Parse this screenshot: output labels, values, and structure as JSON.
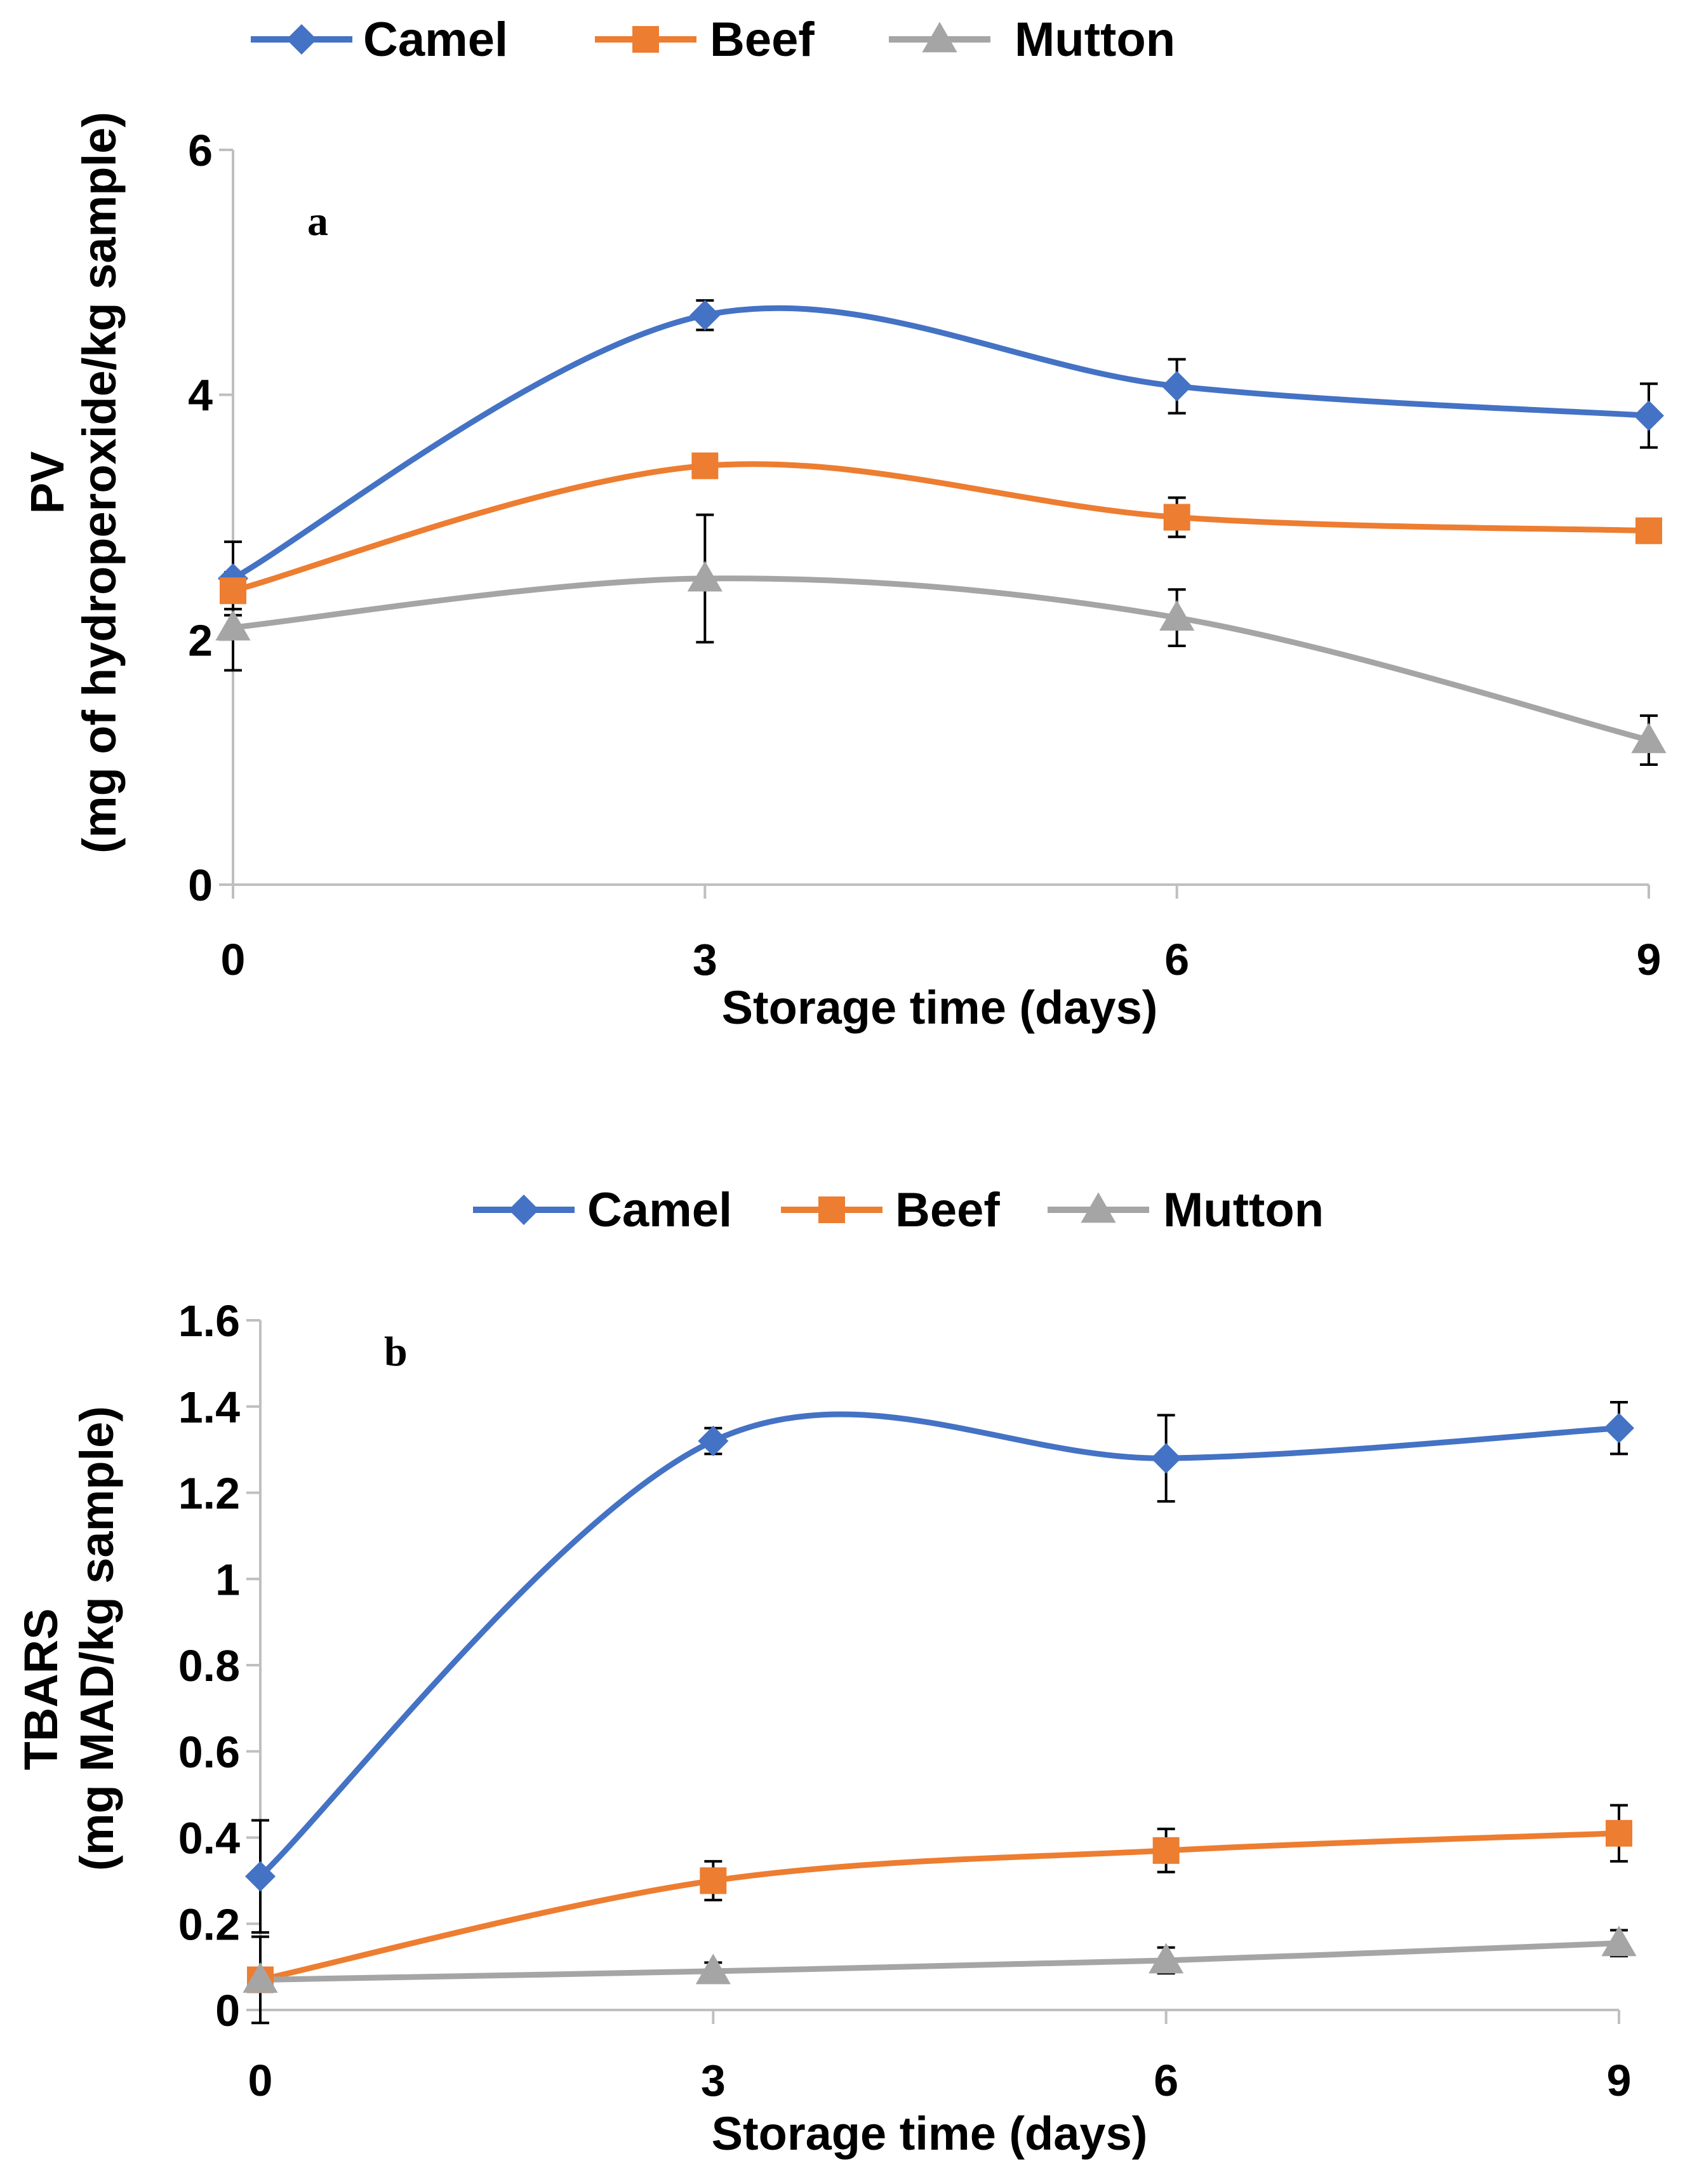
{
  "chart_data": [
    {
      "type": "line",
      "panel_label": "a",
      "legend": [
        "Camel",
        "Beef",
        "Mutton"
      ],
      "x": [
        0,
        3,
        6,
        9
      ],
      "x_tick_labels": [
        "0",
        "3",
        "6",
        "9"
      ],
      "xlabel": "Storage time (days)",
      "ylabel": [
        "PV",
        "(mg of hydroperoxide/kg sample)"
      ],
      "ylim": [
        0,
        6
      ],
      "y_tick_labels": [
        "0",
        "2",
        "4",
        "6"
      ],
      "y_ticks": [
        0,
        2,
        4,
        6
      ],
      "series": [
        {
          "name": "Camel",
          "color": "#4472C4",
          "marker": "diamond",
          "values": [
            2.5,
            4.65,
            4.07,
            3.83
          ],
          "errors": [
            0.3,
            0.12,
            0.22,
            0.26
          ]
        },
        {
          "name": "Beef",
          "color": "#ED7D31",
          "marker": "square",
          "values": [
            2.4,
            3.42,
            3.0,
            2.89
          ],
          "errors": [
            0.15,
            0.05,
            0.16,
            0.05
          ]
        },
        {
          "name": "Mutton",
          "color": "#A5A5A5",
          "marker": "triangle",
          "values": [
            2.1,
            2.5,
            2.18,
            1.18
          ],
          "errors": [
            0.35,
            0.52,
            0.23,
            0.2
          ]
        }
      ]
    },
    {
      "type": "line",
      "panel_label": "b",
      "legend": [
        "Camel",
        "Beef",
        "Mutton"
      ],
      "x": [
        0,
        3,
        6,
        9
      ],
      "x_tick_labels": [
        "0",
        "3",
        "6",
        "9"
      ],
      "xlabel": "Storage time (days)",
      "ylabel": [
        "TBARS",
        "(mg MAD/kg sample)"
      ],
      "ylim": [
        0,
        1.6
      ],
      "y_tick_labels": [
        "0",
        "0.2",
        "0.4",
        "0.6",
        "0.8",
        "1",
        "1.2",
        "1.4",
        "1.6"
      ],
      "y_ticks": [
        0,
        0.2,
        0.4,
        0.6,
        0.8,
        1,
        1.2,
        1.4,
        1.6
      ],
      "series": [
        {
          "name": "Camel",
          "color": "#4472C4",
          "marker": "diamond",
          "values": [
            0.31,
            1.32,
            1.28,
            1.35
          ],
          "errors": [
            0.13,
            0.03,
            0.1,
            0.06
          ]
        },
        {
          "name": "Beef",
          "color": "#ED7D31",
          "marker": "square",
          "values": [
            0.07,
            0.3,
            0.37,
            0.41
          ],
          "errors": [
            0.02,
            0.045,
            0.05,
            0.065
          ]
        },
        {
          "name": "Mutton",
          "color": "#A5A5A5",
          "marker": "triangle",
          "values": [
            0.07,
            0.09,
            0.115,
            0.155
          ],
          "errors": [
            0.1,
            0.02,
            0.03,
            0.03
          ]
        }
      ]
    }
  ]
}
